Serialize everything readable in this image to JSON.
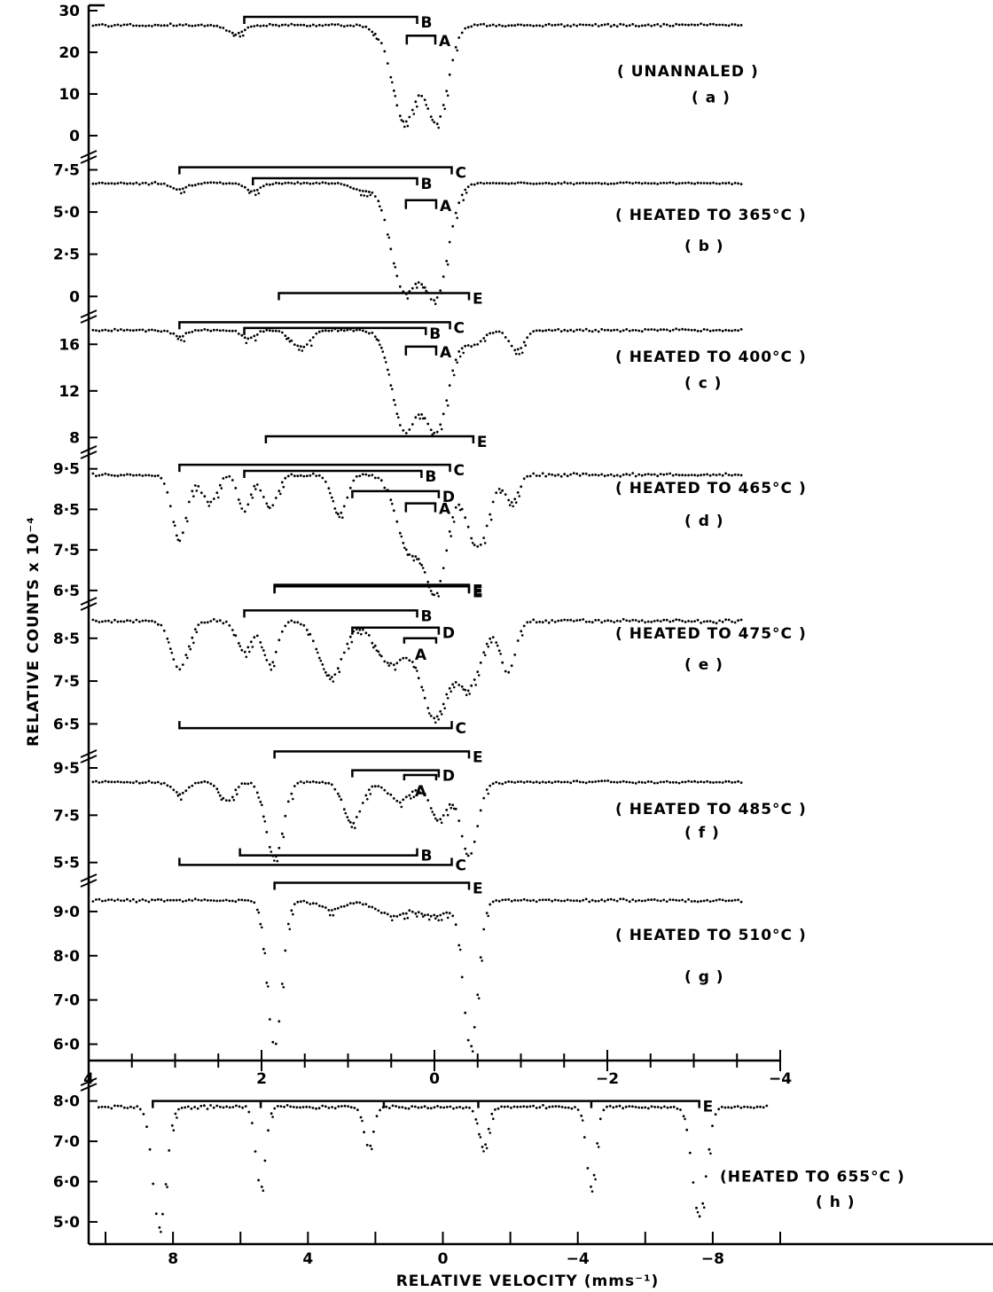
{
  "chart_data": {
    "type": "scatter",
    "xlabel": "RELATIVE VELOCITY (mms⁻¹)",
    "ylabel": "RELATIVE COUNTS x 10⁻⁴",
    "panels": [
      {
        "id": "a",
        "caption": "( UNANNALED )",
        "tag": "( a )",
        "ylim": [
          -1.5,
          30
        ],
        "yticks": [
          0,
          10,
          20,
          30
        ],
        "ytick_labels": [
          "0",
          "10",
          "20",
          "30"
        ],
        "xscale": "upper",
        "baseline": 26.5,
        "noise": 0.45,
        "dips": [
          {
            "v": 2.3,
            "depth": 2.2,
            "width": 0.12
          },
          {
            "v": 0.7,
            "depth": 0.8,
            "width": 0.1
          },
          {
            "v": 0.35,
            "depth": 23,
            "width": 0.2
          },
          {
            "v": -0.03,
            "depth": 23,
            "width": 0.18
          }
        ],
        "brackets": [
          {
            "label": "B",
            "x1": 2.2,
            "x2": 0.2,
            "level": 28.5,
            "dir": "down",
            "label_side": "right"
          },
          {
            "label": "A",
            "x1": 0.32,
            "x2": -0.01,
            "level": 24,
            "dir": "down",
            "tick_len": 10,
            "label_side": "right"
          }
        ],
        "captions": [
          [
            0,
            0.46
          ],
          [
            1,
            0.66
          ]
        ]
      },
      {
        "id": "b",
        "caption": "( HEATED TO 365°C )",
        "tag": "( b )",
        "ylim": [
          -0.3,
          8.0
        ],
        "yticks": [
          0,
          2.5,
          5.0,
          7.5
        ],
        "ytick_labels": [
          "0",
          "2·5",
          "5·0",
          "7·5"
        ],
        "xscale": "upper",
        "baseline": 6.7,
        "noise": 0.08,
        "dips": [
          {
            "v": 2.95,
            "depth": 0.4,
            "width": 0.12
          },
          {
            "v": 2.1,
            "depth": 0.45,
            "width": 0.12
          },
          {
            "v": 0.35,
            "depth": 6.3,
            "width": 0.22
          },
          {
            "v": -0.02,
            "depth": 6.5,
            "width": 0.2
          },
          {
            "v": 0.85,
            "depth": 0.4,
            "width": 0.15
          }
        ],
        "brackets": [
          {
            "label": "C",
            "x1": 2.95,
            "x2": -0.2,
            "level": 7.65,
            "dir": "down",
            "label_side": "right"
          },
          {
            "label": "B",
            "x1": 2.1,
            "x2": 0.2,
            "level": 7.0,
            "dir": "down",
            "label_side": "right"
          },
          {
            "label": "A",
            "x1": 0.33,
            "x2": -0.02,
            "level": 5.7,
            "dir": "down",
            "tick_len": 10,
            "label_side": "right"
          },
          {
            "label": "E",
            "x1": 1.8,
            "x2": -0.4,
            "level": 0.2,
            "dir": "down",
            "label_side": "right"
          }
        ],
        "captions": [
          [
            2,
            0.38
          ],
          [
            3,
            0.6
          ]
        ]
      },
      {
        "id": "c",
        "caption": "( HEATED TO 400°C )",
        "tag": "( c )",
        "ylim": [
          7.8,
          18
        ],
        "yticks": [
          8,
          12,
          16
        ],
        "ytick_labels": [
          "8",
          "12",
          "16"
        ],
        "xscale": "upper",
        "baseline": 17.2,
        "noise": 0.15,
        "dips": [
          {
            "v": 2.95,
            "depth": 0.5,
            "width": 0.12
          },
          {
            "v": 2.15,
            "depth": 0.7,
            "width": 0.12
          },
          {
            "v": 1.55,
            "depth": 1.5,
            "width": 0.15
          },
          {
            "v": 0.35,
            "depth": 8.5,
            "width": 0.2
          },
          {
            "v": -0.02,
            "depth": 8.5,
            "width": 0.2
          },
          {
            "v": -0.45,
            "depth": 1.2,
            "width": 0.15
          },
          {
            "v": -0.95,
            "depth": 1.7,
            "width": 0.12
          }
        ],
        "brackets": [
          {
            "label": "C",
            "x1": 2.95,
            "x2": -0.18,
            "level": 17.9,
            "dir": "down",
            "label_side": "right"
          },
          {
            "label": "B",
            "x1": 2.2,
            "x2": 0.1,
            "level": 17.4,
            "dir": "down",
            "label_side": "right"
          },
          {
            "label": "A",
            "x1": 0.33,
            "x2": -0.02,
            "level": 15.8,
            "dir": "down",
            "tick_len": 10,
            "label_side": "right"
          },
          {
            "label": "E",
            "x1": 1.95,
            "x2": -0.45,
            "level": 8.1,
            "dir": "down",
            "label_side": "right"
          }
        ],
        "captions": [
          [
            4,
            0.3
          ],
          [
            5,
            0.52
          ]
        ]
      },
      {
        "id": "d",
        "caption": "( HEATED TO 465°C )",
        "tag": "( d )",
        "ylim": [
          6.3,
          9.8
        ],
        "yticks": [
          6.5,
          7.5,
          8.5,
          9.5
        ],
        "ytick_labels": [
          "6·5",
          "7·5",
          "8·5",
          "9·5"
        ],
        "xscale": "upper",
        "baseline": 9.35,
        "noise": 0.06,
        "dips": [
          {
            "v": 2.95,
            "depth": 1.6,
            "width": 0.12
          },
          {
            "v": 2.6,
            "depth": 0.7,
            "width": 0.12
          },
          {
            "v": 2.2,
            "depth": 0.9,
            "width": 0.1
          },
          {
            "v": 1.9,
            "depth": 0.8,
            "width": 0.12
          },
          {
            "v": 1.1,
            "depth": 1.0,
            "width": 0.12
          },
          {
            "v": 0.3,
            "depth": 1.8,
            "width": 0.2
          },
          {
            "v": -0.02,
            "depth": 2.8,
            "width": 0.18
          },
          {
            "v": -0.5,
            "depth": 1.8,
            "width": 0.18
          },
          {
            "v": -0.9,
            "depth": 0.7,
            "width": 0.1
          }
        ],
        "brackets": [
          {
            "label": "C",
            "x1": 2.95,
            "x2": -0.18,
            "level": 9.6,
            "dir": "down",
            "label_side": "right"
          },
          {
            "label": "B",
            "x1": 2.2,
            "x2": 0.15,
            "level": 9.45,
            "dir": "down",
            "label_side": "right"
          },
          {
            "label": "D",
            "x1": 0.95,
            "x2": -0.05,
            "level": 8.95,
            "dir": "down",
            "label_side": "right"
          },
          {
            "label": "A",
            "x1": 0.33,
            "x2": -0.01,
            "level": 8.65,
            "dir": "down",
            "tick_len": 10,
            "label_side": "right"
          },
          {
            "label": "E",
            "x1": 1.85,
            "x2": -0.4,
            "level": 6.6,
            "dir": "down",
            "label_side": "right"
          }
        ],
        "captions": [
          [
            6,
            0.22
          ],
          [
            7,
            0.45
          ]
        ]
      },
      {
        "id": "e",
        "caption": "( HEATED TO  475°C )",
        "tag": "( e )",
        "ylim": [
          6.3,
          9.2
        ],
        "yticks": [
          6.5,
          7.5,
          8.5
        ],
        "ytick_labels": [
          "6·5",
          "7·5",
          "8·5"
        ],
        "xscale": "upper",
        "baseline": 8.9,
        "noise": 0.06,
        "dips": [
          {
            "v": 2.95,
            "depth": 1.1,
            "width": 0.14
          },
          {
            "v": 2.2,
            "depth": 0.7,
            "width": 0.12
          },
          {
            "v": 1.9,
            "depth": 1.0,
            "width": 0.12
          },
          {
            "v": 1.2,
            "depth": 1.3,
            "width": 0.2
          },
          {
            "v": 0.5,
            "depth": 1.0,
            "width": 0.25
          },
          {
            "v": 0.0,
            "depth": 2.2,
            "width": 0.22
          },
          {
            "v": -0.4,
            "depth": 1.5,
            "width": 0.2
          },
          {
            "v": -0.85,
            "depth": 1.2,
            "width": 0.12
          }
        ],
        "brackets": [
          {
            "label": "E",
            "x1": 1.85,
            "x2": -0.4,
            "level": 9.75,
            "dir": "down",
            "label_side": "right"
          },
          {
            "label": "B",
            "x1": 2.2,
            "x2": 0.2,
            "level": 9.15,
            "dir": "down",
            "label_side": "right"
          },
          {
            "label": "D",
            "x1": 0.95,
            "x2": -0.05,
            "level": 8.75,
            "dir": "down",
            "label_side": "right"
          },
          {
            "label": "A",
            "x1": 0.35,
            "x2": -0.02,
            "level": 8.5,
            "dir": "down",
            "tick_len": 6,
            "label_side": "below"
          },
          {
            "label": "C",
            "x1": 2.95,
            "x2": -0.2,
            "level": 6.4,
            "dir": "up",
            "label_side": "right"
          }
        ],
        "captions": [
          [
            8,
            0.2
          ],
          [
            9,
            0.45
          ]
        ]
      },
      {
        "id": "f",
        "caption": "( HEATED TO 485°C )",
        "tag": "( f )",
        "ylim": [
          5.3,
          9.8
        ],
        "yticks": [
          5.5,
          7.5,
          9.5
        ],
        "ytick_labels": [
          "5·5",
          "7·5",
          "9·5"
        ],
        "xscale": "upper",
        "baseline": 8.9,
        "noise": 0.08,
        "dips": [
          {
            "v": 2.95,
            "depth": 0.5,
            "width": 0.12
          },
          {
            "v": 1.85,
            "depth": 3.2,
            "width": 0.14
          },
          {
            "v": 0.95,
            "depth": 1.7,
            "width": 0.15
          },
          {
            "v": 0.4,
            "depth": 0.8,
            "width": 0.18
          },
          {
            "v": -0.05,
            "depth": 1.6,
            "width": 0.14
          },
          {
            "v": -0.4,
            "depth": 3.1,
            "width": 0.14
          },
          {
            "v": 2.4,
            "depth": 0.8,
            "width": 0.12
          }
        ],
        "brackets": [
          {
            "label": "E",
            "x1": 1.85,
            "x2": -0.4,
            "level": 10.2,
            "dir": "down",
            "label_side": "right"
          },
          {
            "label": "D",
            "x1": 0.95,
            "x2": -0.05,
            "level": 9.4,
            "dir": "down",
            "label_side": "right"
          },
          {
            "label": "A",
            "x1": 0.35,
            "x2": -0.02,
            "level": 9.2,
            "dir": "down",
            "tick_len": 6,
            "label_side": "below"
          },
          {
            "label": "B",
            "x1": 2.25,
            "x2": 0.2,
            "level": 5.8,
            "dir": "up",
            "label_side": "right"
          },
          {
            "label": "C",
            "x1": 2.95,
            "x2": -0.2,
            "level": 5.4,
            "dir": "up",
            "label_side": "right"
          }
        ],
        "captions": [
          [
            10,
            0.45
          ],
          [
            11,
            0.67
          ]
        ]
      },
      {
        "id": "g",
        "caption": "( HEATED TO 510°C )",
        "tag": "( g )",
        "ylim": [
          5.85,
          9.6
        ],
        "yticks": [
          6.0,
          7.0,
          8.0,
          9.0
        ],
        "ytick_labels": [
          "6·0",
          "7·0",
          "8·0",
          "9·0"
        ],
        "xscale": "upper",
        "baseline": 9.25,
        "noise": 0.05,
        "dips": [
          {
            "v": 1.85,
            "depth": 3.3,
            "width": 0.12
          },
          {
            "v": -0.42,
            "depth": 3.3,
            "width": 0.12
          },
          {
            "v": 1.2,
            "depth": 0.2,
            "width": 0.2
          },
          {
            "v": 0.5,
            "depth": 0.35,
            "width": 0.25
          },
          {
            "v": 0.0,
            "depth": 0.35,
            "width": 0.25
          }
        ],
        "brackets": [
          {
            "label": "E",
            "x1": 1.85,
            "x2": -0.4,
            "level": 9.65,
            "dir": "down",
            "label_side": "right"
          }
        ],
        "captions": [
          [
            12,
            0.3
          ],
          [
            13,
            0.55
          ]
        ]
      },
      {
        "id": "h",
        "caption": "(HEATED TO 655°C )",
        "tag": "( h )",
        "ylim": [
          4.8,
          8.3
        ],
        "yticks": [
          5.0,
          6.0,
          7.0,
          8.0
        ],
        "ytick_labels": [
          "5·0",
          "6·0",
          "7·0",
          "8·0"
        ],
        "xscale": "lower",
        "baseline": 7.85,
        "noise": 0.05,
        "dips": [
          {
            "v": 8.4,
            "depth": 3.0,
            "width": 0.28
          },
          {
            "v": 5.4,
            "depth": 2.0,
            "width": 0.2
          },
          {
            "v": 2.2,
            "depth": 1.0,
            "width": 0.2
          },
          {
            "v": -1.2,
            "depth": 1.0,
            "width": 0.2
          },
          {
            "v": -4.4,
            "depth": 2.0,
            "width": 0.2
          },
          {
            "v": -7.6,
            "depth": 2.7,
            "width": 0.3
          }
        ],
        "brackets": [
          {
            "label": "E",
            "x1": 8.6,
            "x2": -7.6,
            "level": 8.0,
            "dir": "down",
            "label_side": "right",
            "inner_ticks": [
              5.4,
              1.75,
              -1.05,
              -4.4
            ]
          }
        ],
        "captions": [
          [
            14,
            0.62
          ],
          [
            15,
            0.8
          ]
        ]
      }
    ],
    "x_axis_upper": {
      "range": [
        4,
        -4
      ],
      "ticks": [
        4,
        3.5,
        3,
        2.5,
        2,
        1.5,
        1,
        0.5,
        0,
        -0.5,
        -1,
        -1.5,
        -2,
        -2.5,
        -3,
        -3.5,
        -4
      ],
      "labels": {
        "4": "4",
        "2": "2",
        "0": "0",
        "-2": "−2",
        "-4": "−4"
      }
    },
    "x_axis_lower": {
      "range": [
        10.5,
        -10
      ],
      "ticks": [
        10,
        8,
        6,
        4,
        2,
        0,
        -2,
        -4,
        -6,
        -8,
        -10
      ],
      "labels": {
        "8": "8",
        "4": "4",
        "0": "0",
        "-4": "−4",
        "-8": "−8"
      }
    }
  }
}
